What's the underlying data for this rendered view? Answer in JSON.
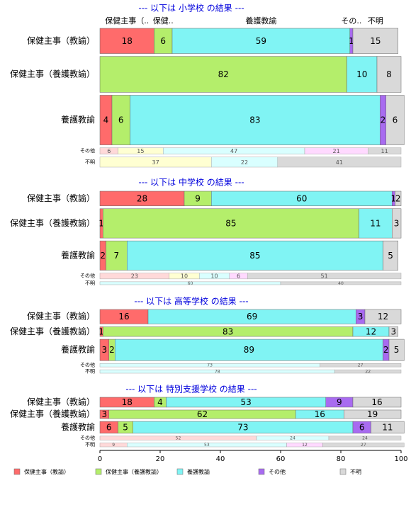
{
  "chart_data": {
    "type": "bar",
    "orientation": "horizontal",
    "stacked": true,
    "xlim": [
      0,
      100
    ],
    "xticks": [
      0,
      20,
      40,
      60,
      80,
      100
    ],
    "series": [
      {
        "name": "保健主事（教諭）",
        "color": "#ff6b6b",
        "light_color": "#ffd9d9"
      },
      {
        "name": "保健主事（養護教諭）",
        "color": "#b4ee6b",
        "light_color": "#ffffd2"
      },
      {
        "name": "養護教諭",
        "color": "#80f4f4",
        "light_color": "#d9ffff"
      },
      {
        "name": "その他",
        "color": "#a86bf0",
        "light_color": "#ffd9ff"
      },
      {
        "name": "不明",
        "color": "#d9d9d9",
        "light_color": "#d9d9d9"
      }
    ],
    "panels": [
      {
        "title": "--- 以下は 小学校 の結果 ---",
        "column_labels": [
          "保健主事（..",
          "保健..",
          "養護教諭",
          "その..",
          "不明"
        ],
        "categories": [
          "保健主事（教諭）",
          "保健主事（養護教諭）",
          "養護教諭",
          "その他",
          "不明"
        ],
        "row_weights": [
          35,
          50,
          69,
          9,
          14
        ],
        "values": [
          [
            18,
            6,
            59,
            1,
            15
          ],
          [
            null,
            82,
            10,
            null,
            8
          ],
          [
            4,
            6,
            83,
            2,
            6
          ],
          [
            6,
            15,
            47,
            21,
            11
          ],
          [
            null,
            37,
            22,
            null,
            41
          ]
        ]
      },
      {
        "title": "--- 以下は 中学校 の結果 ---",
        "categories": [
          "保健主事（教諭）",
          "保健主事（養護教諭）",
          "養護教諭",
          "その他",
          "不明"
        ],
        "row_weights": [
          20,
          40,
          40,
          8,
          4
        ],
        "values": [
          [
            28,
            9,
            60,
            1,
            2
          ],
          [
            1,
            85,
            11,
            null,
            3
          ],
          [
            2,
            7,
            85,
            null,
            5
          ],
          [
            23,
            10,
            10,
            6,
            51
          ],
          [
            null,
            null,
            60,
            null,
            40
          ]
        ]
      },
      {
        "title": "--- 以下は 高等学校 の結果 ---",
        "categories": [
          "保健主事（教諭）",
          "保健主事（養護教諭）",
          "養護教諭",
          "その他",
          "不明"
        ],
        "row_weights": [
          21,
          14,
          31,
          5,
          5
        ],
        "values": [
          [
            16,
            null,
            69,
            3,
            12
          ],
          [
            1,
            83,
            12,
            null,
            3
          ],
          [
            3,
            2,
            89,
            2,
            5
          ],
          [
            null,
            null,
            73,
            null,
            27
          ],
          [
            null,
            null,
            78,
            null,
            22
          ]
        ]
      },
      {
        "title": "--- 以下は 特別支援学校 の結果 ---",
        "categories": [
          "保健主事（教諭）",
          "保健主事（養護教諭）",
          "養護教諭",
          "その他",
          "不明"
        ],
        "row_weights": [
          15,
          13,
          18,
          6,
          6
        ],
        "values": [
          [
            18,
            4,
            53,
            9,
            16
          ],
          [
            3,
            62,
            16,
            null,
            19
          ],
          [
            6,
            5,
            73,
            6,
            11
          ],
          [
            52,
            null,
            24,
            null,
            24
          ],
          [
            9,
            null,
            53,
            12,
            27
          ]
        ]
      }
    ]
  }
}
